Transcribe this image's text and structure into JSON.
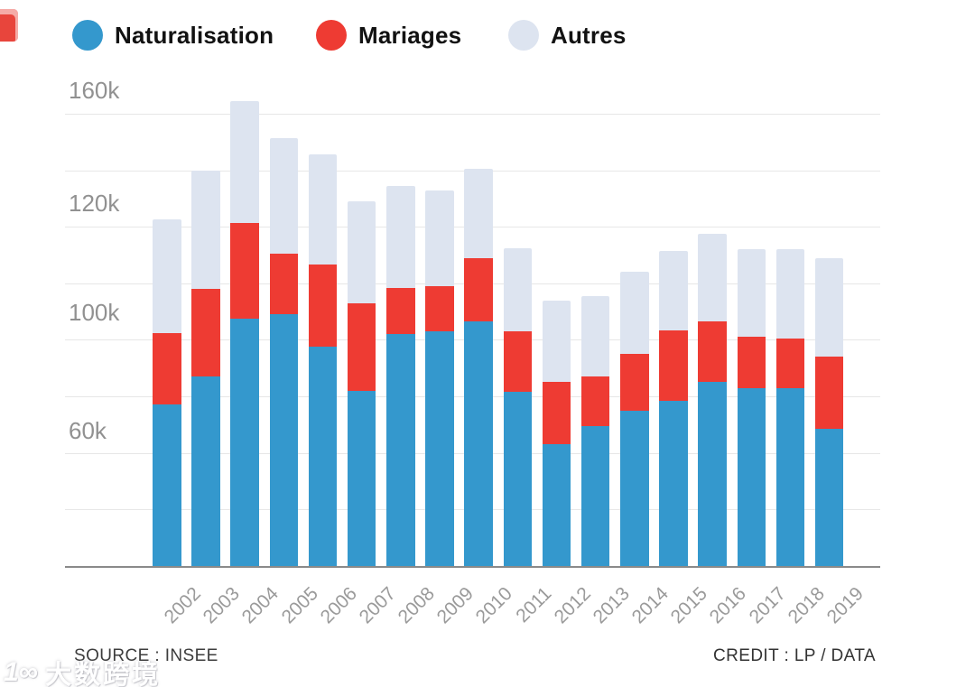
{
  "legend": {
    "items": [
      {
        "label": "Naturalisation",
        "color": "#3498cd",
        "icon": "blue-dot"
      },
      {
        "label": "Mariages",
        "color": "#ee3b33",
        "icon": "red-dot"
      },
      {
        "label": "Autres",
        "color": "#dde4f0",
        "icon": "lavender-dot"
      }
    ]
  },
  "footer": {
    "source": "SOURCE : INSEE",
    "credit": "CREDIT : LP / DATA"
  },
  "watermark": {
    "logo": "1∞",
    "text": "大数跨境"
  },
  "colors": {
    "naturalisation": "#3498cd",
    "mariages": "#ee3b33",
    "autres": "#dde4f0",
    "gridline": "#e7e7e7",
    "axis_baseline": "#8a8a8a",
    "tick_text": "#919191"
  },
  "chart_data": {
    "type": "bar",
    "stacked": true,
    "unit": "thousands",
    "categories": [
      "2002",
      "2003",
      "2004",
      "2005",
      "2006",
      "2007",
      "2008",
      "2009",
      "2010",
      "2011",
      "2012",
      "2013",
      "2014",
      "2015",
      "2016",
      "2017",
      "2018",
      "2019"
    ],
    "series": [
      {
        "name": "Naturalisation",
        "color": "#3498cd",
        "values": [
          57,
          67,
          87.5,
          89,
          77.5,
          62,
          82,
          83,
          86.5,
          61.5,
          43,
          49.5,
          55,
          58.5,
          65,
          63,
          63,
          48.5
        ]
      },
      {
        "name": "Mariages",
        "color": "#ee3b33",
        "values": [
          25.5,
          31,
          34,
          21.5,
          29,
          31,
          16.5,
          16,
          22.5,
          21.5,
          22,
          17.5,
          20,
          25,
          21.5,
          18,
          17.5,
          25.5
        ]
      },
      {
        "name": "Autres",
        "color": "#dde4f0",
        "values": [
          40,
          42,
          43,
          41,
          39,
          36,
          36,
          34,
          31.5,
          29.5,
          29,
          28.5,
          29,
          28,
          31,
          31,
          31.5,
          35
        ]
      }
    ],
    "y_ticks": [
      "160k",
      "120k",
      "100k",
      "60k"
    ],
    "ylim": [
      0,
      160
    ],
    "gridline_step": 20,
    "grid_on": true,
    "legend_position": "top",
    "title": "",
    "xlabel": "",
    "ylabel": ""
  }
}
